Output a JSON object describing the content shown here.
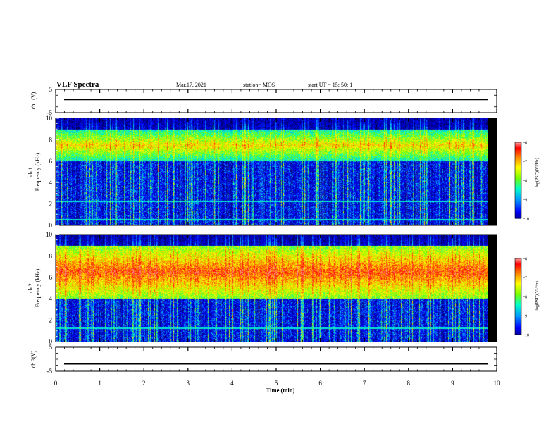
{
  "header": {
    "title": "VLF Spectra",
    "date": "Mar.17, 2021",
    "station": "station= MOS",
    "start": "start  UT =   15: 50: 1"
  },
  "panels": {
    "ch1v_label": "ch.1(V)",
    "ch1_label": "ch.1",
    "ch1_freq_label": "Frequency (kHz)",
    "ch2_label": "ch.2",
    "ch2_freq_label": "Frequency (kHz)",
    "ch3v_label": "ch.3(V)",
    "colorbar_label": "log(PSD)(V²/Hz)"
  },
  "chart_data": {
    "type": "heatmap",
    "title": "VLF Spectra",
    "xlabel": "Time  (min)",
    "xlim": [
      0,
      10
    ],
    "x_ticks": [
      "0",
      "1",
      "2",
      "3",
      "4",
      "5",
      "6",
      "7",
      "8",
      "9",
      "10"
    ],
    "voltage_ticks": [
      "5",
      "-5"
    ],
    "freq_ticks": [
      "10",
      "8",
      "6",
      "4",
      "2",
      "0"
    ],
    "freq_ylim_khz": [
      0,
      10
    ],
    "voltage_ylim": [
      -5,
      5
    ],
    "colorbar": {
      "ticks": [
        "-6",
        "-7",
        "-8",
        "-9",
        "-10"
      ],
      "range": [
        -10,
        -6
      ]
    },
    "panels": [
      {
        "name": "ch.1(V)",
        "kind": "voltage",
        "value": 0
      },
      {
        "name": "ch.1",
        "kind": "spectrogram",
        "upper_band_khz": [
          6,
          9
        ],
        "band_lines_khz": [
          0.5,
          2.2
        ]
      },
      {
        "name": "ch.2",
        "kind": "spectrogram",
        "upper_band_khz": [
          4,
          9
        ],
        "band_lines_khz": [
          1.2
        ]
      },
      {
        "name": "ch.3(V)",
        "kind": "voltage",
        "value": -2
      }
    ],
    "colors": [
      "#000080",
      "#0000ff",
      "#00a0ff",
      "#00ffc0",
      "#80ff00",
      "#ffff00",
      "#ff8000",
      "#ff0000",
      "#ff8080",
      "#ffffff"
    ]
  }
}
